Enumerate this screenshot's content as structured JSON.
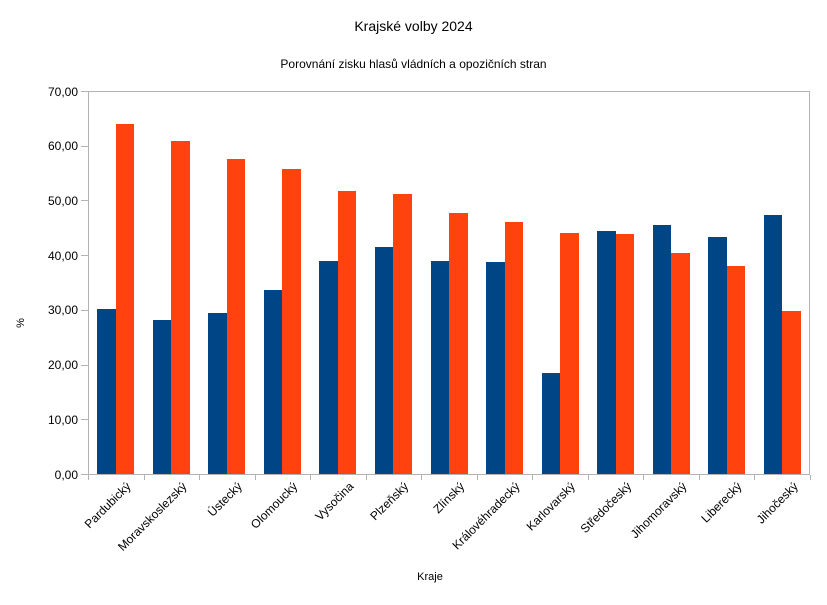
{
  "chart_data": {
    "type": "bar",
    "title": "Krajské volby 2024",
    "subtitle": "Porovnání zisku hlasů vládních a opozičních stran",
    "xlabel": "Kraje",
    "ylabel": "%",
    "ylim": [
      0,
      70
    ],
    "ytick_step": 10,
    "ytick_labels": [
      "0,00",
      "10,00",
      "20,00",
      "30,00",
      "40,00",
      "50,00",
      "60,00",
      "70,00"
    ],
    "grid": false,
    "legend_position": "none",
    "categories": [
      "Pardubický",
      "Moravskoslezský",
      "Ústecký",
      "Olomoucký",
      "Vysočina",
      "Plzeňský",
      "Zlínský",
      "Královéhradecký",
      "Karlovarský",
      "Středočeský",
      "Jihomoravský",
      "Liberecký",
      "Jihočeský"
    ],
    "series": [
      {
        "color": "#004586",
        "values": [
          30.2,
          28.3,
          29.5,
          33.7,
          39.1,
          41.6,
          39.0,
          38.8,
          18.5,
          44.5,
          45.6,
          43.5,
          47.5
        ]
      },
      {
        "color": "#ff420e",
        "values": [
          64.1,
          61.0,
          57.8,
          55.9,
          51.8,
          51.3,
          47.8,
          46.1,
          44.2,
          43.9,
          40.5,
          38.1,
          29.8
        ]
      }
    ]
  },
  "colors": {
    "background": "#ffffff",
    "axis": "#b3b3b3",
    "text": "#000000",
    "series1": "#004586",
    "series2": "#ff420e"
  }
}
